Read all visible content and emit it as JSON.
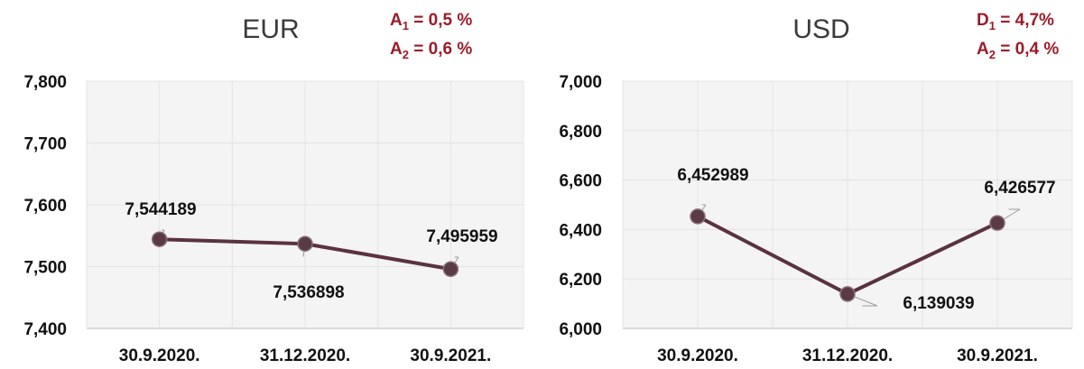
{
  "colors": {
    "line": "#5a3240",
    "marker": "#5a3a44",
    "note": "#9b1b2a",
    "plot_bg": "#f4f4f4"
  },
  "chart_data": [
    {
      "type": "line",
      "title": "EUR",
      "notes": [
        {
          "main": "A",
          "sub": "1",
          "rest": " = 0,5 %"
        },
        {
          "main": "A",
          "sub": "2",
          "rest": " =  0,6 %"
        }
      ],
      "categories": [
        "30.9.2020.",
        "31.12.2020.",
        "30.9.2021."
      ],
      "series": [
        {
          "values": [
            7.544189,
            7.536898,
            7.495959
          ]
        }
      ],
      "data_labels": [
        "7,544189",
        "7,536898",
        "7,495959"
      ],
      "ylim": [
        7.4,
        7.8
      ],
      "yticks": [
        7.4,
        7.5,
        7.6,
        7.7,
        7.8
      ],
      "ytick_labels": [
        "7,400",
        "7,500",
        "7,600",
        "7,700",
        "7,800"
      ],
      "grid": true
    },
    {
      "type": "line",
      "title": "USD",
      "notes": [
        {
          "main": "D",
          "sub": "1",
          "rest": " = 4,7%"
        },
        {
          "main": "A",
          "sub": "2",
          "rest": " = 0,4 %"
        }
      ],
      "categories": [
        "30.9.2020.",
        "31.12.2020.",
        "30.9.2021."
      ],
      "series": [
        {
          "values": [
            6.452989,
            6.139039,
            6.426577
          ]
        }
      ],
      "data_labels": [
        "6,452989",
        "6,139039",
        "6,426577"
      ],
      "ylim": [
        6.0,
        7.0
      ],
      "yticks": [
        6.0,
        6.2,
        6.4,
        6.6,
        6.8,
        7.0
      ],
      "ytick_labels": [
        "6,000",
        "6,200",
        "6,400",
        "6,600",
        "6,800",
        "7,000"
      ],
      "grid": true
    }
  ]
}
